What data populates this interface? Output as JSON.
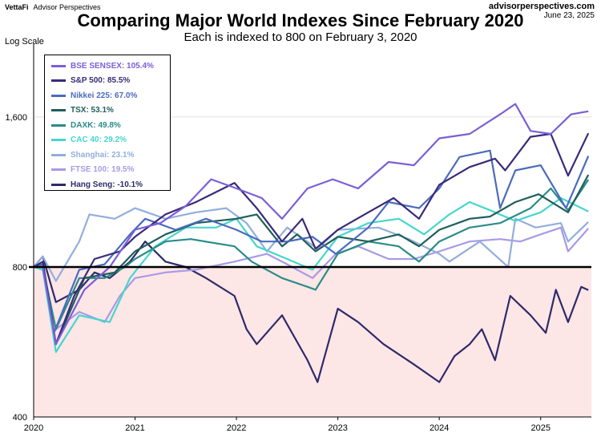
{
  "header": {
    "brand_left": "VettaFi",
    "brand_right": "Advisor Perspectives",
    "site_url": "advisorperspectives.com",
    "date": "June 23, 2025",
    "title": "Comparing Major World Indexes Since February 2020",
    "subtitle": "Each is indexed to 800 on February 3, 2020",
    "y_axis_label": "Log Scale"
  },
  "legend": [
    {
      "label": "BSE SENSEX: 105.4%",
      "color": "#7a5fd6"
    },
    {
      "label": "S&P 500: 85.5%",
      "color": "#3a2a78"
    },
    {
      "label": "Nikkei 225: 67.0%",
      "color": "#4a6bbd"
    },
    {
      "label": "TSX: 53.1%",
      "color": "#1f5e5a"
    },
    {
      "label": "DAXK: 49.8%",
      "color": "#2a8c88"
    },
    {
      "label": "CAC 40: 29.2%",
      "color": "#46d6cc"
    },
    {
      "label": "Shanghai: 23.1%",
      "color": "#93aedc"
    },
    {
      "label": "FTSE 100: 19.5%",
      "color": "#a99ae6"
    },
    {
      "label": "Hang Seng: -10.1%",
      "color": "#2e2a6a"
    }
  ],
  "chart_data": {
    "type": "line",
    "log_scale": true,
    "title": "Comparing Major World Indexes Since February 2020",
    "subtitle": "Each is indexed to 800 on February 3, 2020",
    "ylabel": "Log Scale",
    "ylim": [
      400,
      2200
    ],
    "y_ticks": [
      400,
      800,
      1600
    ],
    "y_tick_labels": [
      "400",
      "800",
      "1,600"
    ],
    "x_ticks": [
      "2020",
      "2021",
      "2022",
      "2023",
      "2024",
      "2025"
    ],
    "xlim": [
      2020.0,
      2025.5
    ],
    "reference_line": 800,
    "shade_below_reference": "#fde6e6",
    "series": [
      {
        "name": "BSE SENSEX",
        "change": "105.4%",
        "color": "#7a5fd6",
        "points": [
          [
            2020.0,
            800
          ],
          [
            2020.09,
            800
          ],
          [
            2020.22,
            560
          ],
          [
            2020.5,
            720
          ],
          [
            2020.75,
            800
          ],
          [
            2021.0,
            950
          ],
          [
            2021.25,
            980
          ],
          [
            2021.5,
            1060
          ],
          [
            2021.75,
            1200
          ],
          [
            2022.0,
            1150
          ],
          [
            2022.25,
            1100
          ],
          [
            2022.45,
            1000
          ],
          [
            2022.7,
            1150
          ],
          [
            2022.95,
            1200
          ],
          [
            2023.2,
            1150
          ],
          [
            2023.5,
            1300
          ],
          [
            2023.75,
            1280
          ],
          [
            2024.0,
            1450
          ],
          [
            2024.3,
            1480
          ],
          [
            2024.6,
            1620
          ],
          [
            2024.75,
            1700
          ],
          [
            2024.9,
            1500
          ],
          [
            2025.1,
            1480
          ],
          [
            2025.3,
            1620
          ],
          [
            2025.47,
            1643
          ]
        ]
      },
      {
        "name": "S&P 500",
        "change": "85.5%",
        "color": "#3a2a78",
        "points": [
          [
            2020.0,
            800
          ],
          [
            2020.09,
            820
          ],
          [
            2020.22,
            560
          ],
          [
            2020.4,
            700
          ],
          [
            2020.6,
            830
          ],
          [
            2020.85,
            860
          ],
          [
            2021.0,
            920
          ],
          [
            2021.3,
            1020
          ],
          [
            2021.6,
            1080
          ],
          [
            2021.98,
            1180
          ],
          [
            2022.2,
            1050
          ],
          [
            2022.45,
            900
          ],
          [
            2022.65,
            1000
          ],
          [
            2022.78,
            870
          ],
          [
            2023.0,
            950
          ],
          [
            2023.3,
            1030
          ],
          [
            2023.55,
            1100
          ],
          [
            2023.8,
            1000
          ],
          [
            2024.0,
            1170
          ],
          [
            2024.3,
            1270
          ],
          [
            2024.55,
            1320
          ],
          [
            2024.65,
            1250
          ],
          [
            2024.9,
            1460
          ],
          [
            2025.1,
            1480
          ],
          [
            2025.27,
            1220
          ],
          [
            2025.47,
            1484
          ]
        ]
      },
      {
        "name": "Nikkei 225",
        "change": "67.0%",
        "color": "#4a6bbd",
        "points": [
          [
            2020.0,
            800
          ],
          [
            2020.09,
            810
          ],
          [
            2020.2,
            590
          ],
          [
            2020.45,
            790
          ],
          [
            2020.7,
            810
          ],
          [
            2020.95,
            930
          ],
          [
            2021.1,
            1000
          ],
          [
            2021.4,
            950
          ],
          [
            2021.7,
            1000
          ],
          [
            2022.0,
            950
          ],
          [
            2022.25,
            900
          ],
          [
            2022.5,
            900
          ],
          [
            2022.75,
            920
          ],
          [
            2022.98,
            850
          ],
          [
            2023.3,
            960
          ],
          [
            2023.5,
            1080
          ],
          [
            2023.8,
            1050
          ],
          [
            2024.0,
            1150
          ],
          [
            2024.2,
            1330
          ],
          [
            2024.5,
            1370
          ],
          [
            2024.6,
            1050
          ],
          [
            2024.75,
            1250
          ],
          [
            2025.0,
            1280
          ],
          [
            2025.25,
            1050
          ],
          [
            2025.47,
            1336
          ]
        ]
      },
      {
        "name": "TSX",
        "change": "53.1%",
        "color": "#1f5e5a",
        "points": [
          [
            2020.0,
            800
          ],
          [
            2020.09,
            810
          ],
          [
            2020.22,
            560
          ],
          [
            2020.5,
            760
          ],
          [
            2020.8,
            780
          ],
          [
            2021.0,
            860
          ],
          [
            2021.3,
            930
          ],
          [
            2021.6,
            980
          ],
          [
            2022.0,
            1000
          ],
          [
            2022.2,
            1020
          ],
          [
            2022.45,
            880
          ],
          [
            2022.6,
            930
          ],
          [
            2022.78,
            860
          ],
          [
            2023.0,
            920
          ],
          [
            2023.3,
            900
          ],
          [
            2023.6,
            930
          ],
          [
            2023.8,
            880
          ],
          [
            2024.0,
            950
          ],
          [
            2024.3,
            1000
          ],
          [
            2024.5,
            1010
          ],
          [
            2024.75,
            1080
          ],
          [
            2024.98,
            1120
          ],
          [
            2025.27,
            1030
          ],
          [
            2025.47,
            1225
          ]
        ]
      },
      {
        "name": "DAXK",
        "change": "49.8%",
        "color": "#2a8c88",
        "points": [
          [
            2020.0,
            800
          ],
          [
            2020.09,
            800
          ],
          [
            2020.22,
            600
          ],
          [
            2020.45,
            760
          ],
          [
            2020.7,
            760
          ],
          [
            2020.9,
            800
          ],
          [
            2021.0,
            830
          ],
          [
            2021.3,
            900
          ],
          [
            2021.55,
            910
          ],
          [
            2021.98,
            880
          ],
          [
            2022.15,
            820
          ],
          [
            2022.45,
            760
          ],
          [
            2022.7,
            730
          ],
          [
            2022.78,
            720
          ],
          [
            2023.0,
            850
          ],
          [
            2023.3,
            900
          ],
          [
            2023.6,
            880
          ],
          [
            2023.8,
            820
          ],
          [
            2024.0,
            900
          ],
          [
            2024.3,
            960
          ],
          [
            2024.6,
            980
          ],
          [
            2024.9,
            1050
          ],
          [
            2025.1,
            1150
          ],
          [
            2025.27,
            1040
          ],
          [
            2025.47,
            1198
          ]
        ]
      },
      {
        "name": "CAC 40",
        "change": "29.2%",
        "color": "#46d6cc",
        "points": [
          [
            2020.0,
            800
          ],
          [
            2020.09,
            790
          ],
          [
            2020.22,
            540
          ],
          [
            2020.45,
            640
          ],
          [
            2020.75,
            620
          ],
          [
            2020.95,
            760
          ],
          [
            2021.2,
            880
          ],
          [
            2021.5,
            960
          ],
          [
            2021.8,
            960
          ],
          [
            2022.0,
            1000
          ],
          [
            2022.2,
            880
          ],
          [
            2022.5,
            830
          ],
          [
            2022.75,
            790
          ],
          [
            2023.0,
            920
          ],
          [
            2023.3,
            980
          ],
          [
            2023.6,
            1000
          ],
          [
            2023.85,
            930
          ],
          [
            2024.1,
            1020
          ],
          [
            2024.3,
            1080
          ],
          [
            2024.5,
            1040
          ],
          [
            2024.75,
            990
          ],
          [
            2025.0,
            1030
          ],
          [
            2025.2,
            1100
          ],
          [
            2025.47,
            1034
          ]
        ]
      },
      {
        "name": "Shanghai",
        "change": "23.1%",
        "color": "#93aedc",
        "points": [
          [
            2020.0,
            800
          ],
          [
            2020.09,
            840
          ],
          [
            2020.22,
            750
          ],
          [
            2020.45,
            900
          ],
          [
            2020.55,
            1020
          ],
          [
            2020.8,
            1000
          ],
          [
            2021.0,
            1050
          ],
          [
            2021.3,
            1000
          ],
          [
            2021.6,
            1030
          ],
          [
            2021.9,
            1050
          ],
          [
            2022.1,
            980
          ],
          [
            2022.3,
            860
          ],
          [
            2022.5,
            960
          ],
          [
            2022.8,
            870
          ],
          [
            2023.0,
            950
          ],
          [
            2023.4,
            960
          ],
          [
            2023.7,
            910
          ],
          [
            2024.0,
            850
          ],
          [
            2024.1,
            820
          ],
          [
            2024.4,
            900
          ],
          [
            2024.68,
            800
          ],
          [
            2024.75,
            1000
          ],
          [
            2024.95,
            960
          ],
          [
            2025.2,
            980
          ],
          [
            2025.27,
            900
          ],
          [
            2025.47,
            985
          ]
        ]
      },
      {
        "name": "FTSE 100",
        "change": "19.5%",
        "color": "#a99ae6",
        "points": [
          [
            2020.0,
            800
          ],
          [
            2020.09,
            790
          ],
          [
            2020.22,
            600
          ],
          [
            2020.45,
            650
          ],
          [
            2020.7,
            620
          ],
          [
            2020.85,
            700
          ],
          [
            2021.0,
            760
          ],
          [
            2021.3,
            780
          ],
          [
            2021.6,
            790
          ],
          [
            2021.98,
            820
          ],
          [
            2022.3,
            850
          ],
          [
            2022.5,
            810
          ],
          [
            2022.75,
            760
          ],
          [
            2022.98,
            850
          ],
          [
            2023.2,
            880
          ],
          [
            2023.5,
            830
          ],
          [
            2023.75,
            830
          ],
          [
            2024.0,
            860
          ],
          [
            2024.3,
            900
          ],
          [
            2024.6,
            910
          ],
          [
            2024.8,
            900
          ],
          [
            2025.0,
            930
          ],
          [
            2025.2,
            960
          ],
          [
            2025.27,
            860
          ],
          [
            2025.47,
            956
          ]
        ]
      },
      {
        "name": "Hang Seng",
        "change": "-10.1%",
        "color": "#2e2a6a",
        "points": [
          [
            2020.0,
            800
          ],
          [
            2020.09,
            840
          ],
          [
            2020.22,
            680
          ],
          [
            2020.45,
            720
          ],
          [
            2020.6,
            780
          ],
          [
            2020.75,
            760
          ],
          [
            2020.95,
            820
          ],
          [
            2021.1,
            900
          ],
          [
            2021.3,
            820
          ],
          [
            2021.5,
            800
          ],
          [
            2021.7,
            760
          ],
          [
            2021.98,
            700
          ],
          [
            2022.1,
            600
          ],
          [
            2022.2,
            560
          ],
          [
            2022.45,
            640
          ],
          [
            2022.7,
            520
          ],
          [
            2022.8,
            470
          ],
          [
            2023.0,
            660
          ],
          [
            2023.2,
            620
          ],
          [
            2023.45,
            560
          ],
          [
            2023.75,
            510
          ],
          [
            2024.0,
            470
          ],
          [
            2024.15,
            530
          ],
          [
            2024.3,
            560
          ],
          [
            2024.42,
            600
          ],
          [
            2024.55,
            520
          ],
          [
            2024.7,
            700
          ],
          [
            2024.9,
            640
          ],
          [
            2025.05,
            590
          ],
          [
            2025.15,
            720
          ],
          [
            2025.27,
            620
          ],
          [
            2025.4,
            730
          ],
          [
            2025.47,
            719
          ]
        ]
      }
    ]
  }
}
